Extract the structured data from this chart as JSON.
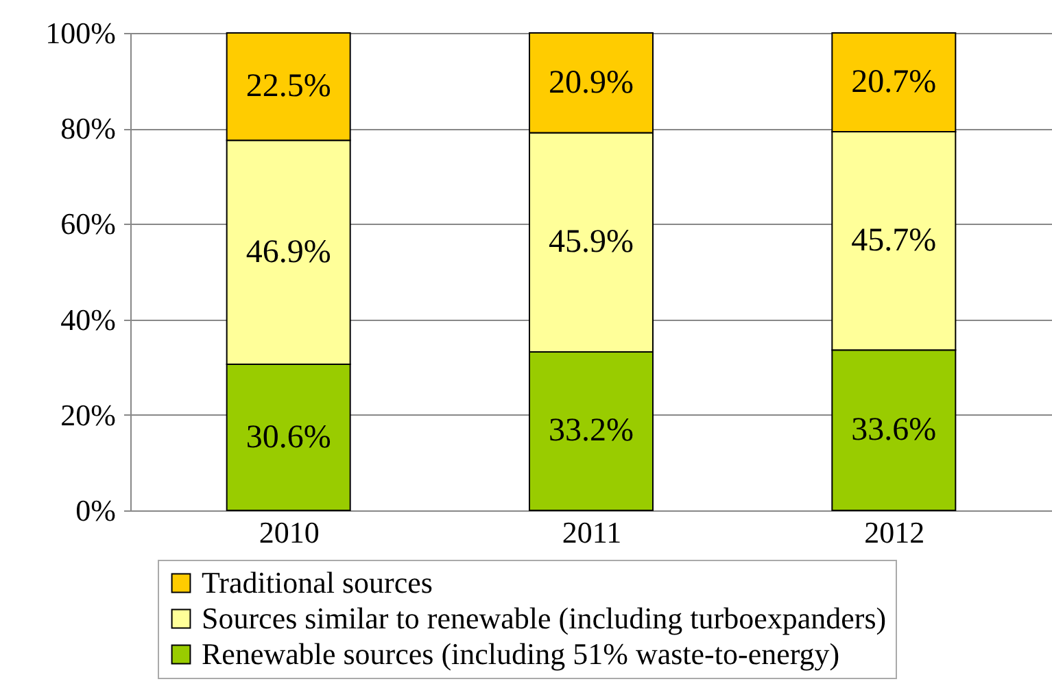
{
  "chart_data": {
    "type": "bar",
    "stacked": true,
    "categories": [
      "2010",
      "2011",
      "2012"
    ],
    "series": [
      {
        "name": "Renewable sources (including 51% waste-to-energy)",
        "color": "#99cc00",
        "values": [
          30.6,
          33.2,
          33.6
        ],
        "value_labels": [
          "30.6%",
          "33.2%",
          "33.6%"
        ]
      },
      {
        "name": "Sources similar to renewable (including turboexpanders)",
        "color": "#ffff99",
        "values": [
          46.9,
          45.9,
          45.7
        ],
        "value_labels": [
          "46.9%",
          "45.9%",
          "45.7%"
        ]
      },
      {
        "name": "Traditional sources",
        "color": "#ffcc00",
        "values": [
          22.5,
          20.9,
          20.7
        ],
        "value_labels": [
          "22.5%",
          "20.9%",
          "20.7%"
        ]
      }
    ],
    "ylim": [
      0,
      100
    ],
    "yticks": [
      {
        "value": 0,
        "label": "0%"
      },
      {
        "value": 20,
        "label": "20%"
      },
      {
        "value": 40,
        "label": "40%"
      },
      {
        "value": 60,
        "label": "60%"
      },
      {
        "value": 80,
        "label": "80%"
      },
      {
        "value": 100,
        "label": "100%"
      }
    ],
    "grid": "y",
    "legend": "bottom"
  }
}
